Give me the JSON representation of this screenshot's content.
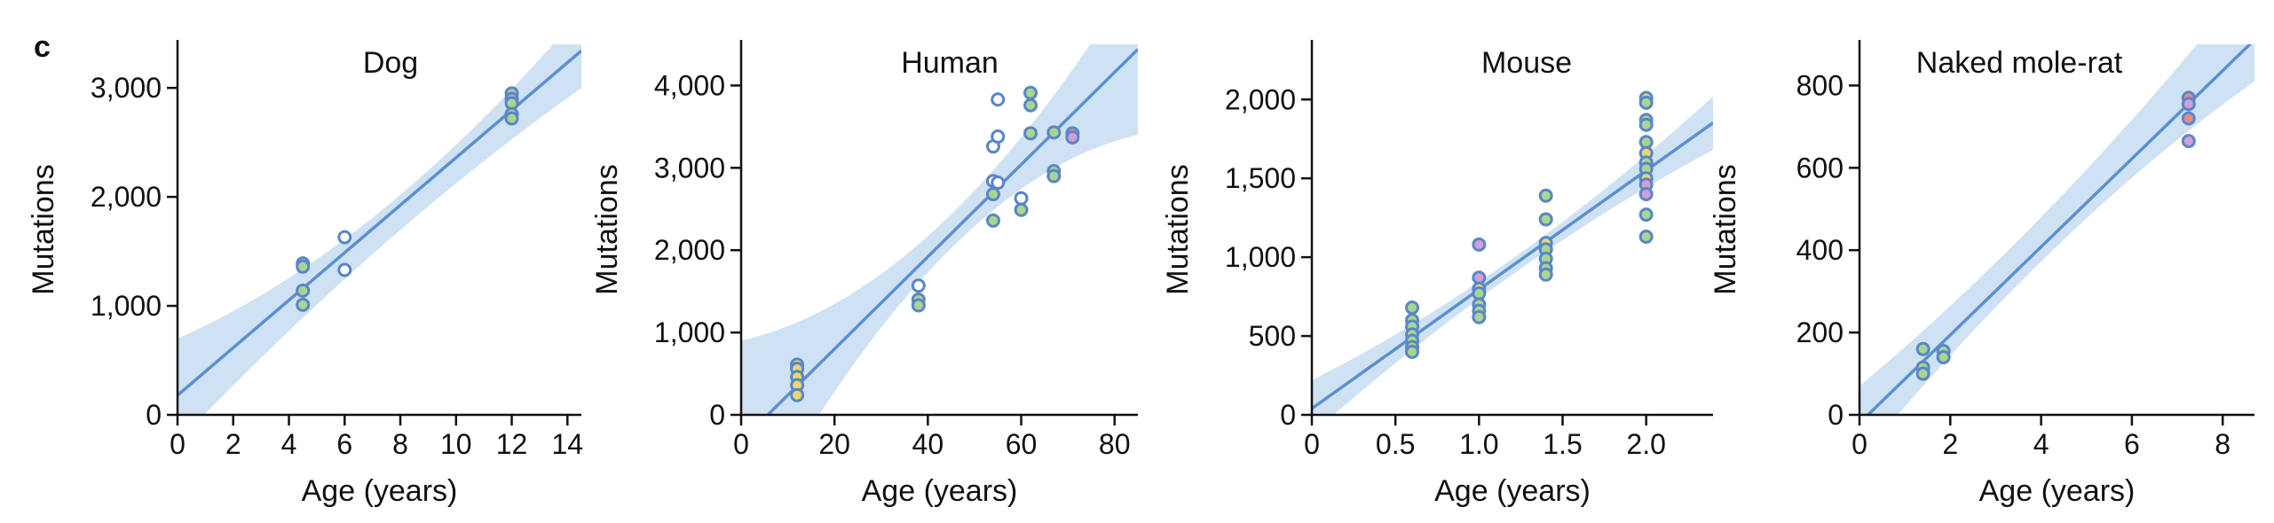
{
  "figure": {
    "panel_letter": "c"
  },
  "colors": {
    "line": "#5b8fd0",
    "band": "#cfe2f3",
    "point_edge": "#5a86c8",
    "axis": "#111111"
  },
  "chart_data": [
    {
      "type": "scatter",
      "title": "Dog",
      "xlabel": "Age (years)",
      "ylabel": "Mutations",
      "xlim": [
        0,
        14.5
      ],
      "ylim": [
        0,
        3400
      ],
      "xticks": [
        0,
        2,
        4,
        6,
        8,
        10,
        12,
        14
      ],
      "xtick_labels": [
        "0",
        "2",
        "4",
        "6",
        "8",
        "10",
        "12",
        "14"
      ],
      "yticks": [
        0,
        1000,
        2000,
        3000
      ],
      "ytick_labels": [
        "0",
        "1,000",
        "2,000",
        "3,000"
      ],
      "fit": {
        "slope": 218,
        "intercept": 180,
        "ci_at_xmin": [
          -250,
          700
        ],
        "ci_at_xmid": [
          1530,
          1860
        ],
        "ci_at_xmax": [
          3000,
          3700
        ]
      },
      "points": [
        {
          "x": 4.5,
          "y": 1390,
          "fill": "#a9d68e"
        },
        {
          "x": 4.5,
          "y": 1360,
          "fill": "#a9d68e"
        },
        {
          "x": 4.5,
          "y": 1140,
          "fill": "#a9d68e"
        },
        {
          "x": 4.5,
          "y": 1010,
          "fill": "#a9d68e"
        },
        {
          "x": 6.0,
          "y": 1630,
          "fill": "#ffffff"
        },
        {
          "x": 6.0,
          "y": 1330,
          "fill": "#ffffff"
        },
        {
          "x": 12.0,
          "y": 2950,
          "fill": "#a9d68e"
        },
        {
          "x": 12.0,
          "y": 2900,
          "fill": "#d0a0d8"
        },
        {
          "x": 12.0,
          "y": 2860,
          "fill": "#a9d68e"
        },
        {
          "x": 12.0,
          "y": 2760,
          "fill": "#a9d68e"
        },
        {
          "x": 12.0,
          "y": 2720,
          "fill": "#a9d68e"
        }
      ]
    },
    {
      "type": "scatter",
      "title": "Human",
      "xlabel": "Age (years)",
      "ylabel": "Mutations",
      "xlim": [
        0,
        85
      ],
      "ylim": [
        0,
        4500
      ],
      "xticks": [
        0,
        20,
        40,
        60,
        80
      ],
      "xtick_labels": [
        "0",
        "20",
        "40",
        "60",
        "80"
      ],
      "yticks": [
        0,
        1000,
        2000,
        3000,
        4000
      ],
      "ytick_labels": [
        "0",
        "1,000",
        "2,000",
        "3,000",
        "4,000"
      ],
      "fit": {
        "slope": 56,
        "intercept": -320,
        "ci_at_xmin": [
          -1600,
          900
        ],
        "ci_at_xmid": [
          1880,
          2300
        ],
        "ci_at_xmax": [
          3400,
          5400
        ]
      },
      "points": [
        {
          "x": 12,
          "y": 610,
          "fill": "#e8d870"
        },
        {
          "x": 12,
          "y": 560,
          "fill": "#e8d870"
        },
        {
          "x": 12,
          "y": 460,
          "fill": "#e8d870"
        },
        {
          "x": 12,
          "y": 360,
          "fill": "#e8d870"
        },
        {
          "x": 12,
          "y": 240,
          "fill": "#e8d870"
        },
        {
          "x": 38,
          "y": 1570,
          "fill": "#ffffff"
        },
        {
          "x": 38,
          "y": 1400,
          "fill": "#a9d68e"
        },
        {
          "x": 38,
          "y": 1330,
          "fill": "#a9d68e"
        },
        {
          "x": 54,
          "y": 3260,
          "fill": "#ffffff"
        },
        {
          "x": 54,
          "y": 2840,
          "fill": "#ffffff"
        },
        {
          "x": 54,
          "y": 2680,
          "fill": "#a9d68e"
        },
        {
          "x": 54,
          "y": 2360,
          "fill": "#a9d68e"
        },
        {
          "x": 55,
          "y": 3830,
          "fill": "#ffffff"
        },
        {
          "x": 55,
          "y": 3380,
          "fill": "#ffffff"
        },
        {
          "x": 55,
          "y": 2820,
          "fill": "#ffffff"
        },
        {
          "x": 60,
          "y": 2630,
          "fill": "#ffffff"
        },
        {
          "x": 60,
          "y": 2490,
          "fill": "#a9d68e"
        },
        {
          "x": 62,
          "y": 3910,
          "fill": "#a9d68e"
        },
        {
          "x": 62,
          "y": 3760,
          "fill": "#a9d68e"
        },
        {
          "x": 62,
          "y": 3420,
          "fill": "#a9d68e"
        },
        {
          "x": 67,
          "y": 3430,
          "fill": "#a9d68e"
        },
        {
          "x": 67,
          "y": 2960,
          "fill": "#a9d68e"
        },
        {
          "x": 67,
          "y": 2900,
          "fill": "#a9d68e"
        },
        {
          "x": 71,
          "y": 3420,
          "fill": "#e88888"
        },
        {
          "x": 71,
          "y": 3370,
          "fill": "#d0a0d8"
        }
      ]
    },
    {
      "type": "scatter",
      "title": "Mouse",
      "xlabel": "Age (years)",
      "ylabel": "Mutations",
      "xlim": [
        0,
        2.4
      ],
      "ylim": [
        0,
        2350
      ],
      "xticks": [
        0,
        0.5,
        1.0,
        1.5,
        2.0
      ],
      "xtick_labels": [
        "0",
        "0.5",
        "1.0",
        "1.5",
        "2.0"
      ],
      "yticks": [
        0,
        500,
        1000,
        1500,
        2000
      ],
      "ytick_labels": [
        "0",
        "500",
        "1,000",
        "1,500",
        "2,000"
      ],
      "fit": {
        "slope": 755,
        "intercept": 40,
        "ci_at_xmin": [
          -120,
          220
        ],
        "ci_at_xmid": [
          890,
          990
        ],
        "ci_at_xmax": [
          1680,
          2020
        ]
      },
      "points": [
        {
          "x": 0.6,
          "y": 680,
          "fill": "#a9d68e"
        },
        {
          "x": 0.6,
          "y": 600,
          "fill": "#a9d68e"
        },
        {
          "x": 0.6,
          "y": 560,
          "fill": "#a9d68e"
        },
        {
          "x": 0.6,
          "y": 510,
          "fill": "#a9d68e"
        },
        {
          "x": 0.6,
          "y": 470,
          "fill": "#a9d68e"
        },
        {
          "x": 0.6,
          "y": 430,
          "fill": "#a9d68e"
        },
        {
          "x": 0.6,
          "y": 400,
          "fill": "#a9d68e"
        },
        {
          "x": 1.0,
          "y": 1080,
          "fill": "#d0a0d8"
        },
        {
          "x": 1.0,
          "y": 870,
          "fill": "#d0a0d8"
        },
        {
          "x": 1.0,
          "y": 800,
          "fill": "#e8d870"
        },
        {
          "x": 1.0,
          "y": 770,
          "fill": "#a9d68e"
        },
        {
          "x": 1.0,
          "y": 700,
          "fill": "#a9d68e"
        },
        {
          "x": 1.0,
          "y": 660,
          "fill": "#a9d68e"
        },
        {
          "x": 1.0,
          "y": 620,
          "fill": "#a9d68e"
        },
        {
          "x": 1.4,
          "y": 1390,
          "fill": "#a9d68e"
        },
        {
          "x": 1.4,
          "y": 1240,
          "fill": "#a9d68e"
        },
        {
          "x": 1.4,
          "y": 1090,
          "fill": "#e8d870"
        },
        {
          "x": 1.4,
          "y": 1050,
          "fill": "#a9d68e"
        },
        {
          "x": 1.4,
          "y": 990,
          "fill": "#a9d68e"
        },
        {
          "x": 1.4,
          "y": 930,
          "fill": "#a9d68e"
        },
        {
          "x": 1.4,
          "y": 890,
          "fill": "#a9d68e"
        },
        {
          "x": 2.0,
          "y": 2010,
          "fill": "#e8d870"
        },
        {
          "x": 2.0,
          "y": 1980,
          "fill": "#a9d68e"
        },
        {
          "x": 2.0,
          "y": 1870,
          "fill": "#a9d68e"
        },
        {
          "x": 2.0,
          "y": 1840,
          "fill": "#a9d68e"
        },
        {
          "x": 2.0,
          "y": 1730,
          "fill": "#a9d68e"
        },
        {
          "x": 2.0,
          "y": 1660,
          "fill": "#e8d870"
        },
        {
          "x": 2.0,
          "y": 1600,
          "fill": "#a9d68e"
        },
        {
          "x": 2.0,
          "y": 1560,
          "fill": "#a9d68e"
        },
        {
          "x": 2.0,
          "y": 1500,
          "fill": "#e8d870"
        },
        {
          "x": 2.0,
          "y": 1460,
          "fill": "#d0a0d8"
        },
        {
          "x": 2.0,
          "y": 1400,
          "fill": "#d0a0d8"
        },
        {
          "x": 2.0,
          "y": 1270,
          "fill": "#a9d68e"
        },
        {
          "x": 2.0,
          "y": 1130,
          "fill": "#a9d68e"
        }
      ]
    },
    {
      "type": "scatter",
      "title": "Naked mole-rat",
      "xlabel": "Age (years)",
      "ylabel": "Mutations",
      "xlim": [
        0,
        8.7
      ],
      "ylim": [
        0,
        900
      ],
      "xticks": [
        0,
        2,
        4,
        6,
        8
      ],
      "xtick_labels": [
        "0",
        "2",
        "4",
        "6",
        "8"
      ],
      "yticks": [
        0,
        200,
        400,
        600,
        800
      ],
      "ytick_labels": [
        "0",
        "200",
        "400",
        "600",
        "800"
      ],
      "fit": {
        "slope": 107,
        "intercept": -20,
        "ci_at_xmin": [
          -110,
          70
        ],
        "ci_at_xmid": [
          410,
          520
        ],
        "ci_at_xmax": [
          810,
          1070
        ]
      },
      "points": [
        {
          "x": 1.4,
          "y": 160,
          "fill": "#a9d68e"
        },
        {
          "x": 1.4,
          "y": 115,
          "fill": "#a9d68e"
        },
        {
          "x": 1.4,
          "y": 100,
          "fill": "#a9d68e"
        },
        {
          "x": 1.85,
          "y": 155,
          "fill": "#a9d68e"
        },
        {
          "x": 1.85,
          "y": 140,
          "fill": "#a9d68e"
        },
        {
          "x": 7.25,
          "y": 770,
          "fill": "#e88888"
        },
        {
          "x": 7.25,
          "y": 755,
          "fill": "#d0a0d8"
        },
        {
          "x": 7.25,
          "y": 720,
          "fill": "#e88888"
        },
        {
          "x": 7.25,
          "y": 665,
          "fill": "#d0a0d8"
        }
      ]
    }
  ]
}
